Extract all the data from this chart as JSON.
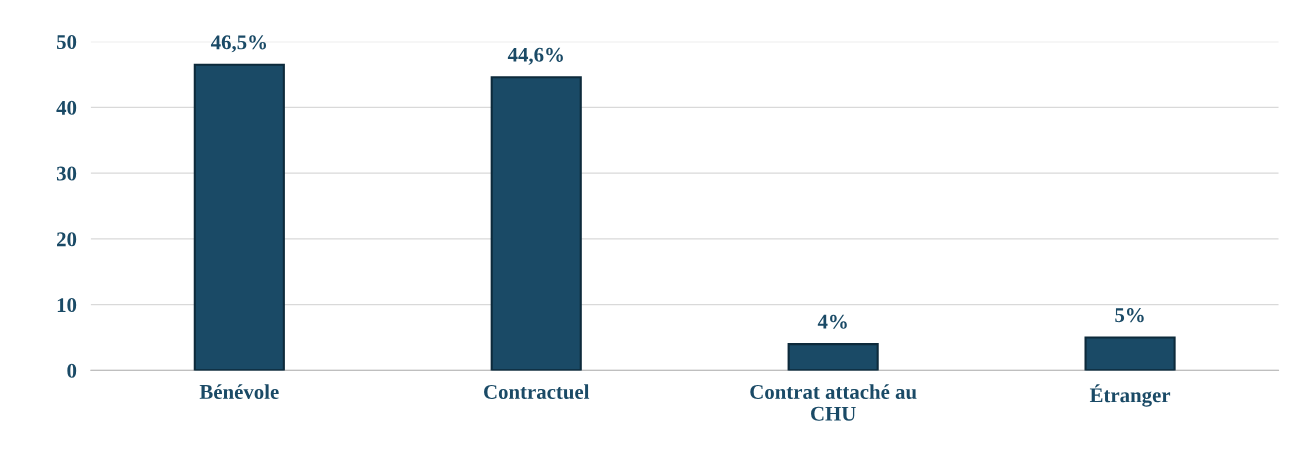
{
  "chart_data": {
    "type": "bar",
    "categories": [
      "Bénévole",
      "Contractuel",
      "Contrat attaché au\nCHU",
      "Étranger"
    ],
    "values": [
      46.5,
      44.6,
      4,
      5
    ],
    "value_labels": [
      "46,5%",
      "44,6%",
      "4%",
      "5%"
    ],
    "color": "#1a4a66",
    "ylim": [
      0,
      50
    ],
    "yticks": [
      0,
      10,
      20,
      30,
      40,
      50
    ],
    "grid": "y",
    "legend": false
  }
}
